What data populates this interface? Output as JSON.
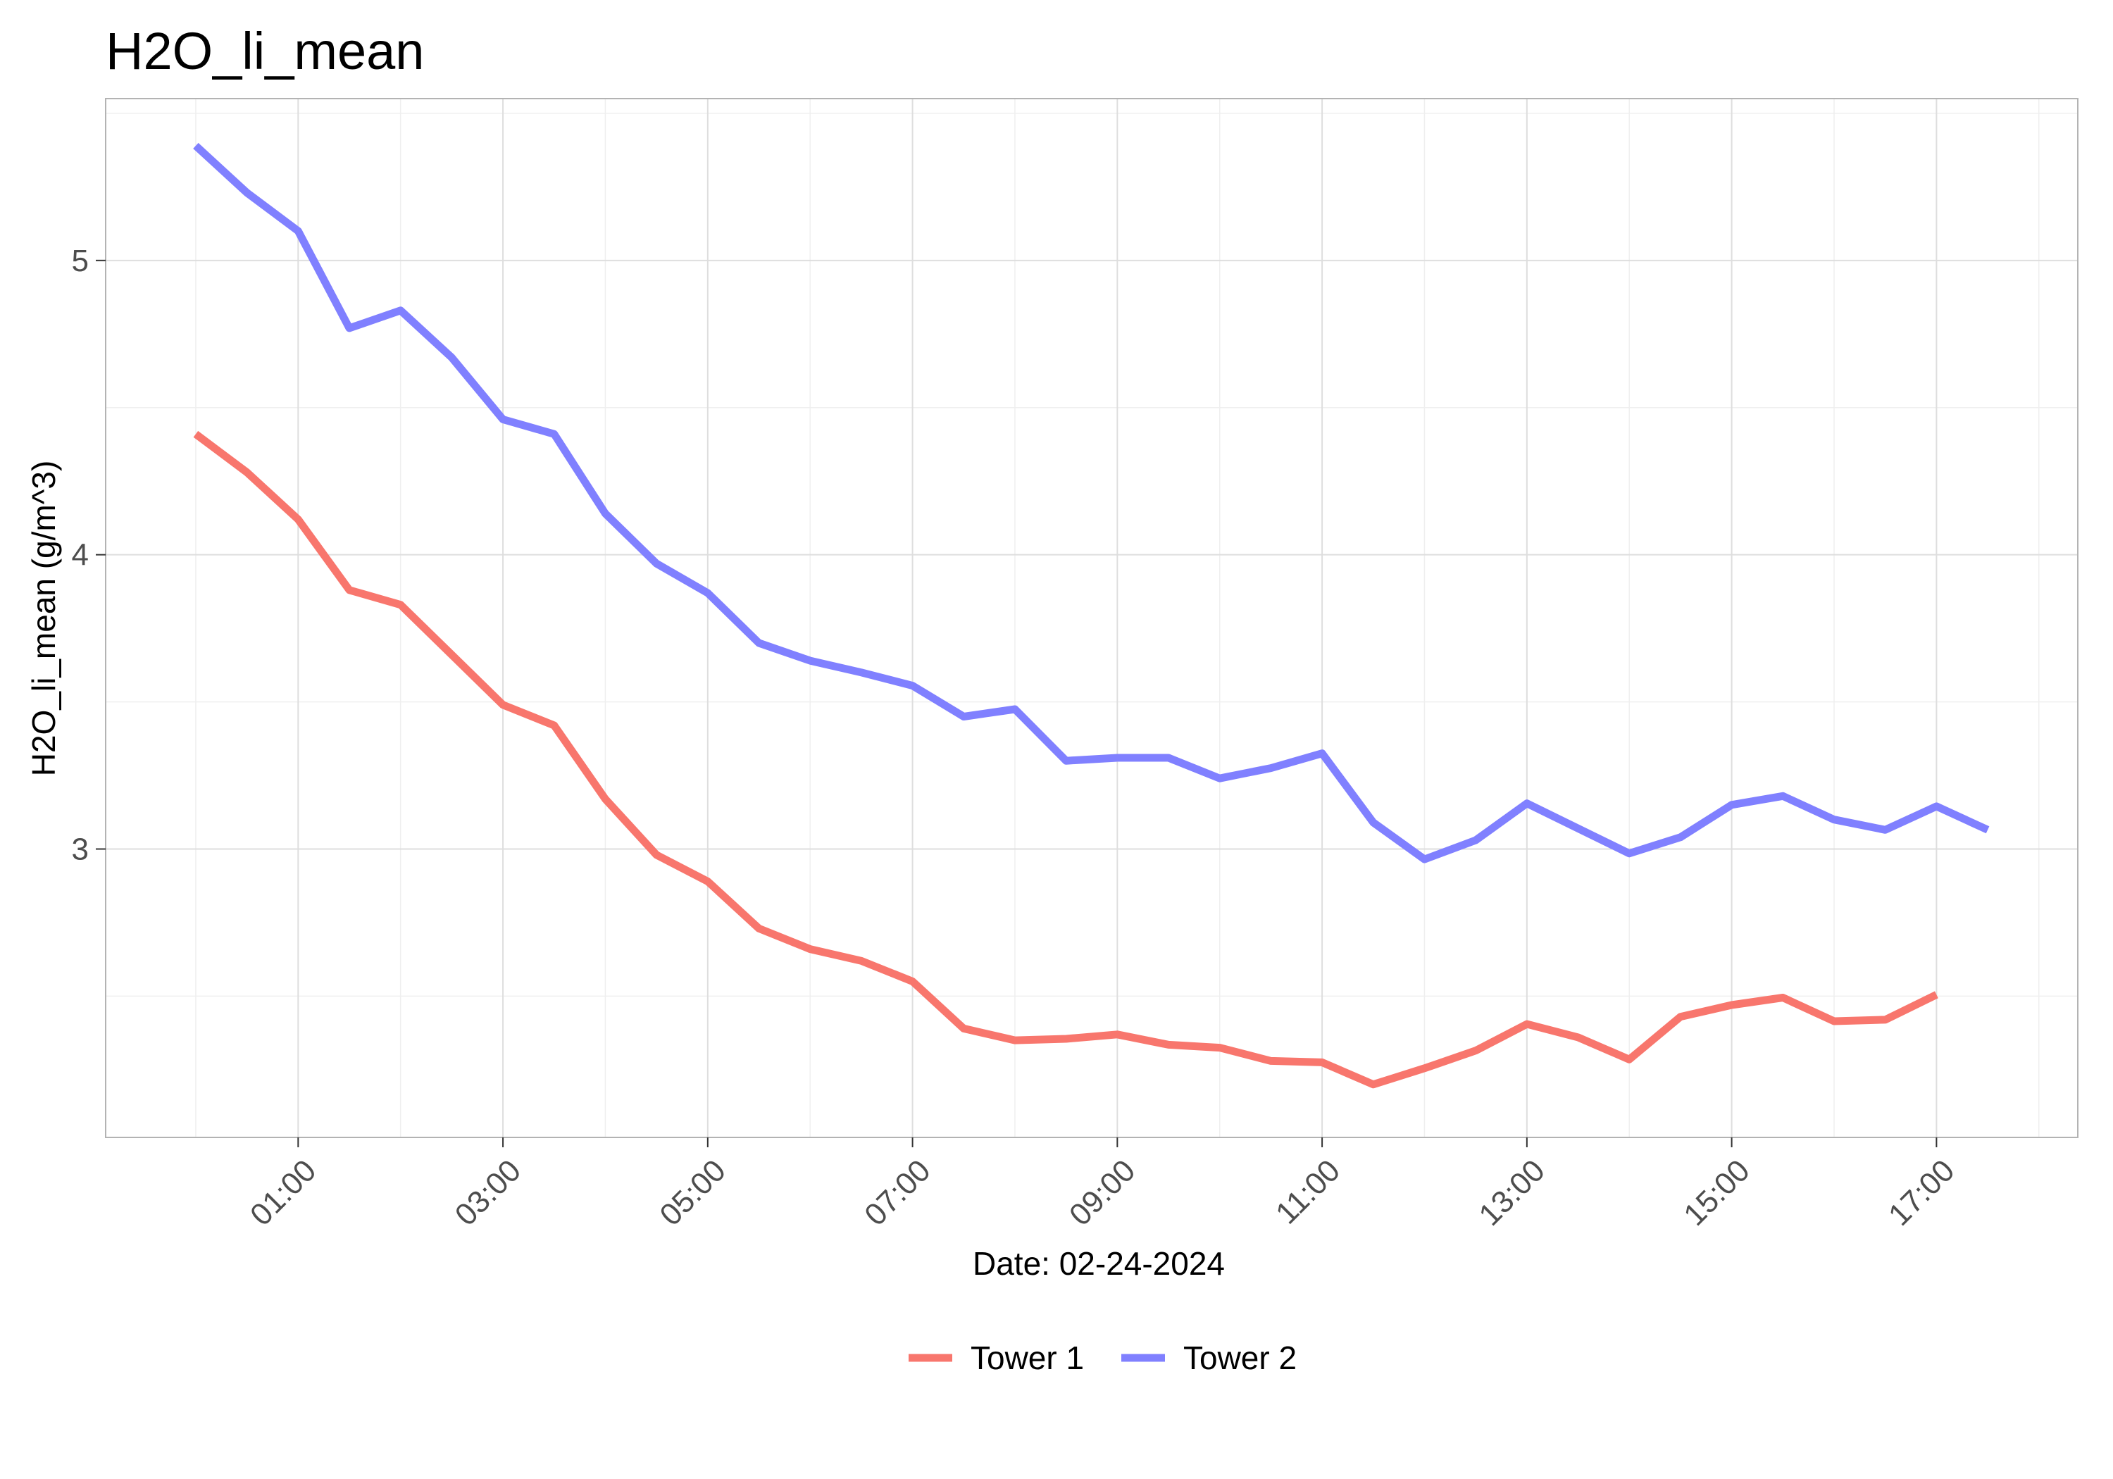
{
  "chart_data": {
    "type": "line",
    "title": "H2O_li_mean",
    "xlabel": "Date: 02-24-2024",
    "ylabel": "H2O_li_mean (g/m^3)",
    "x_ticks": [
      {
        "value": 1,
        "label": "01:00"
      },
      {
        "value": 3,
        "label": "03:00"
      },
      {
        "value": 5,
        "label": "05:00"
      },
      {
        "value": 7,
        "label": "07:00"
      },
      {
        "value": 9,
        "label": "09:00"
      },
      {
        "value": 11,
        "label": "11:00"
      },
      {
        "value": 13,
        "label": "13:00"
      },
      {
        "value": 15,
        "label": "15:00"
      },
      {
        "value": 17,
        "label": "17:00"
      }
    ],
    "y_ticks": [
      {
        "value": 3,
        "label": "3"
      },
      {
        "value": 4,
        "label": "4"
      },
      {
        "value": 5,
        "label": "5"
      }
    ],
    "xlim": [
      -0.88,
      18.38
    ],
    "ylim": [
      2.02,
      5.55
    ],
    "grid": true,
    "legend_position": "bottom",
    "series": [
      {
        "name": "Tower 1",
        "color": "#f8766d",
        "points": [
          [
            0.0,
            4.41
          ],
          [
            0.5,
            4.28
          ],
          [
            1.0,
            4.12
          ],
          [
            1.5,
            3.88
          ],
          [
            2.0,
            3.83
          ],
          [
            2.5,
            3.66
          ],
          [
            3.0,
            3.49
          ],
          [
            3.5,
            3.42
          ],
          [
            4.0,
            3.17
          ],
          [
            4.5,
            2.98
          ],
          [
            5.0,
            2.89
          ],
          [
            5.5,
            2.73
          ],
          [
            6.0,
            2.66
          ],
          [
            6.5,
            2.62
          ],
          [
            7.0,
            2.55
          ],
          [
            7.5,
            2.39
          ],
          [
            8.0,
            2.35
          ],
          [
            8.5,
            2.355
          ],
          [
            9.0,
            2.37
          ],
          [
            9.5,
            2.335
          ],
          [
            10.0,
            2.325
          ],
          [
            10.5,
            2.28
          ],
          [
            11.0,
            2.275
          ],
          [
            11.5,
            2.2
          ],
          [
            12.0,
            2.255
          ],
          [
            12.5,
            2.315
          ],
          [
            13.0,
            2.405
          ],
          [
            13.5,
            2.36
          ],
          [
            14.0,
            2.285
          ],
          [
            14.5,
            2.43
          ],
          [
            15.0,
            2.47
          ],
          [
            15.5,
            2.495
          ],
          [
            16.0,
            2.415
          ],
          [
            16.5,
            2.42
          ],
          [
            17.0,
            2.505
          ]
        ]
      },
      {
        "name": "Tower 2",
        "color": "#8080ff",
        "points": [
          [
            0.0,
            5.39
          ],
          [
            0.5,
            5.23
          ],
          [
            1.0,
            5.1
          ],
          [
            1.5,
            4.77
          ],
          [
            2.0,
            4.83
          ],
          [
            2.5,
            4.67
          ],
          [
            3.0,
            4.46
          ],
          [
            3.5,
            4.41
          ],
          [
            4.0,
            4.14
          ],
          [
            4.5,
            3.97
          ],
          [
            5.0,
            3.87
          ],
          [
            5.5,
            3.7
          ],
          [
            6.0,
            3.64
          ],
          [
            6.5,
            3.6
          ],
          [
            7.0,
            3.555
          ],
          [
            7.5,
            3.45
          ],
          [
            8.0,
            3.475
          ],
          [
            8.5,
            3.3
          ],
          [
            9.0,
            3.31
          ],
          [
            9.5,
            3.31
          ],
          [
            10.0,
            3.24
          ],
          [
            10.5,
            3.275
          ],
          [
            11.0,
            3.325
          ],
          [
            11.5,
            3.09
          ],
          [
            12.0,
            2.965
          ],
          [
            12.5,
            3.03
          ],
          [
            13.0,
            3.155
          ],
          [
            13.5,
            3.07
          ],
          [
            14.0,
            2.985
          ],
          [
            14.5,
            3.04
          ],
          [
            15.0,
            3.15
          ],
          [
            15.5,
            3.18
          ],
          [
            16.0,
            3.1
          ],
          [
            16.5,
            3.065
          ],
          [
            17.0,
            3.145
          ],
          [
            17.5,
            3.065
          ]
        ]
      }
    ]
  }
}
